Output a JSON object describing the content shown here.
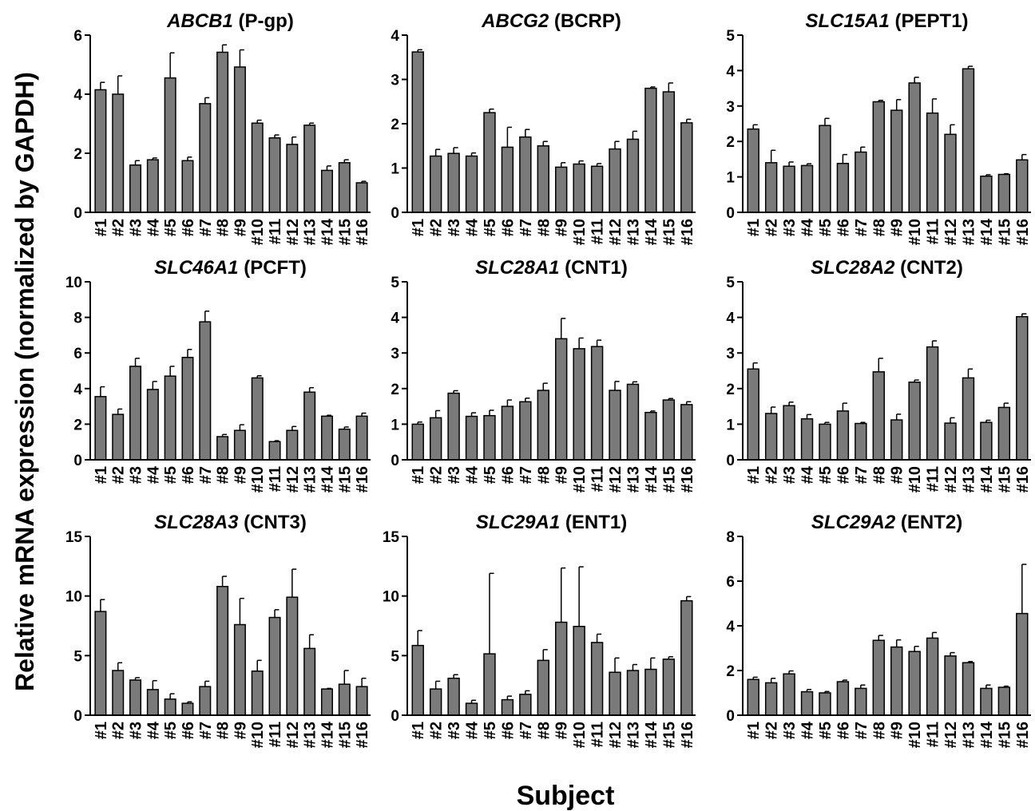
{
  "figure": {
    "ylabel": "Relative mRNA expression (normalized by GAPDH)",
    "xlabel": "Subject"
  },
  "colors": {
    "bar": "#7a7a7a",
    "stroke": "#000000"
  },
  "chart_data": [
    {
      "type": "bar",
      "title_gene": "ABCB1",
      "title_protein": " (P-gp)",
      "categories": [
        "#1",
        "#2",
        "#3",
        "#4",
        "#5",
        "#6",
        "#7",
        "#8",
        "#9",
        "#10",
        "#11",
        "#12",
        "#13",
        "#14",
        "#15",
        "#16"
      ],
      "ylim": [
        0,
        6
      ],
      "yticks": [
        0,
        2,
        4,
        6
      ],
      "values": [
        4.15,
        4.0,
        1.6,
        1.78,
        4.55,
        1.75,
        3.68,
        5.42,
        4.92,
        3.02,
        2.52,
        2.3,
        2.95,
        1.42,
        1.68,
        1.0
      ],
      "errors": [
        0.25,
        0.62,
        0.15,
        0.06,
        0.85,
        0.12,
        0.2,
        0.25,
        0.58,
        0.1,
        0.1,
        0.25,
        0.07,
        0.15,
        0.1,
        0.05
      ]
    },
    {
      "type": "bar",
      "title_gene": "ABCG2",
      "title_protein": " (BCRP)",
      "categories": [
        "#1",
        "#2",
        "#3",
        "#4",
        "#5",
        "#6",
        "#7",
        "#8",
        "#9",
        "#10",
        "#11",
        "#12",
        "#13",
        "#14",
        "#15",
        "#16"
      ],
      "ylim": [
        0,
        4
      ],
      "yticks": [
        0,
        1,
        2,
        3,
        4
      ],
      "values": [
        3.62,
        1.27,
        1.33,
        1.27,
        2.25,
        1.47,
        1.7,
        1.5,
        1.02,
        1.09,
        1.04,
        1.43,
        1.65,
        2.8,
        2.72,
        2.02
      ],
      "errors": [
        0.05,
        0.15,
        0.13,
        0.07,
        0.08,
        0.45,
        0.17,
        0.1,
        0.1,
        0.07,
        0.06,
        0.17,
        0.18,
        0.03,
        0.2,
        0.08
      ]
    },
    {
      "type": "bar",
      "title_gene": "SLC15A1",
      "title_protein": " (PEPT1)",
      "categories": [
        "#1",
        "#2",
        "#3",
        "#4",
        "#5",
        "#6",
        "#7",
        "#8",
        "#9",
        "#10",
        "#11",
        "#12",
        "#13",
        "#14",
        "#15",
        "#16"
      ],
      "ylim": [
        0,
        5
      ],
      "yticks": [
        0,
        1,
        2,
        3,
        4,
        5
      ],
      "values": [
        2.35,
        1.4,
        1.3,
        1.32,
        2.45,
        1.38,
        1.7,
        3.12,
        2.88,
        3.65,
        2.8,
        2.2,
        4.05,
        1.02,
        1.07,
        1.48
      ],
      "errors": [
        0.12,
        0.35,
        0.12,
        0.05,
        0.2,
        0.25,
        0.14,
        0.04,
        0.3,
        0.16,
        0.4,
        0.27,
        0.07,
        0.04,
        0.02,
        0.15
      ]
    },
    {
      "type": "bar",
      "title_gene": "SLC46A1",
      "title_protein": " (PCFT)",
      "categories": [
        "#1",
        "#2",
        "#3",
        "#4",
        "#5",
        "#6",
        "#7",
        "#8",
        "#9",
        "#10",
        "#11",
        "#12",
        "#13",
        "#14",
        "#15",
        "#16"
      ],
      "ylim": [
        0,
        10
      ],
      "yticks": [
        0,
        2,
        4,
        6,
        8,
        10
      ],
      "values": [
        3.55,
        2.55,
        5.25,
        3.95,
        4.7,
        5.75,
        7.75,
        1.3,
        1.65,
        4.6,
        1.02,
        1.65,
        3.8,
        2.45,
        1.72,
        2.45
      ],
      "errors": [
        0.55,
        0.3,
        0.45,
        0.45,
        0.55,
        0.45,
        0.6,
        0.12,
        0.32,
        0.12,
        0.05,
        0.22,
        0.25,
        0.05,
        0.12,
        0.17
      ]
    },
    {
      "type": "bar",
      "title_gene": "SLC28A1",
      "title_protein": " (CNT1)",
      "categories": [
        "#1",
        "#2",
        "#3",
        "#4",
        "#5",
        "#6",
        "#7",
        "#8",
        "#9",
        "#10",
        "#11",
        "#12",
        "#13",
        "#14",
        "#15",
        "#16"
      ],
      "ylim": [
        0,
        5
      ],
      "yticks": [
        0,
        1,
        2,
        3,
        4,
        5
      ],
      "values": [
        1.0,
        1.18,
        1.87,
        1.22,
        1.24,
        1.5,
        1.63,
        1.95,
        3.4,
        3.12,
        3.18,
        1.95,
        2.12,
        1.33,
        1.68,
        1.55
      ],
      "errors": [
        0.06,
        0.2,
        0.07,
        0.1,
        0.15,
        0.18,
        0.1,
        0.2,
        0.57,
        0.3,
        0.18,
        0.25,
        0.07,
        0.04,
        0.04,
        0.08
      ]
    },
    {
      "type": "bar",
      "title_gene": "SLC28A2",
      "title_protein": " (CNT2)",
      "categories": [
        "#1",
        "#2",
        "#3",
        "#4",
        "#5",
        "#6",
        "#7",
        "#8",
        "#9",
        "#10",
        "#11",
        "#12",
        "#13",
        "#14",
        "#15",
        "#16"
      ],
      "ylim": [
        0,
        5
      ],
      "yticks": [
        0,
        1,
        2,
        3,
        4,
        5
      ],
      "values": [
        2.55,
        1.3,
        1.52,
        1.15,
        1.0,
        1.37,
        1.02,
        2.47,
        1.12,
        2.18,
        3.17,
        1.03,
        2.3,
        1.05,
        1.47,
        4.02
      ],
      "errors": [
        0.17,
        0.18,
        0.1,
        0.12,
        0.05,
        0.22,
        0.03,
        0.38,
        0.16,
        0.06,
        0.17,
        0.15,
        0.25,
        0.06,
        0.12,
        0.08
      ]
    },
    {
      "type": "bar",
      "title_gene": "SLC28A3",
      "title_protein": " (CNT3)",
      "categories": [
        "#1",
        "#2",
        "#3",
        "#4",
        "#5",
        "#6",
        "#7",
        "#8",
        "#9",
        "#10",
        "#11",
        "#12",
        "#13",
        "#14",
        "#15",
        "#16"
      ],
      "ylim": [
        0,
        15
      ],
      "yticks": [
        0,
        5,
        10,
        15
      ],
      "values": [
        8.7,
        3.75,
        2.95,
        2.15,
        1.35,
        1.0,
        2.4,
        10.8,
        7.6,
        3.7,
        8.2,
        9.9,
        5.6,
        2.2,
        2.6,
        2.4
      ],
      "errors": [
        1.0,
        0.65,
        0.2,
        0.75,
        0.45,
        0.12,
        0.45,
        0.85,
        2.2,
        0.9,
        0.65,
        2.35,
        1.15,
        0.05,
        1.15,
        0.7
      ]
    },
    {
      "type": "bar",
      "title_gene": "SLC29A1",
      "title_protein": " (ENT1)",
      "categories": [
        "#1",
        "#2",
        "#3",
        "#4",
        "#5",
        "#6",
        "#7",
        "#8",
        "#9",
        "#10",
        "#11",
        "#12",
        "#13",
        "#14",
        "#15",
        "#16"
      ],
      "ylim": [
        0,
        15
      ],
      "yticks": [
        0,
        5,
        10,
        15
      ],
      "values": [
        5.85,
        2.2,
        3.1,
        1.0,
        5.15,
        1.3,
        1.75,
        4.6,
        7.8,
        7.45,
        6.1,
        3.6,
        3.75,
        3.85,
        4.7,
        9.6
      ],
      "errors": [
        1.25,
        0.65,
        0.3,
        0.25,
        6.75,
        0.3,
        0.3,
        0.9,
        4.55,
        5.0,
        0.7,
        1.2,
        0.5,
        0.95,
        0.2,
        0.35
      ]
    },
    {
      "type": "bar",
      "title_gene": "SLC29A2",
      "title_protein": " (ENT2)",
      "categories": [
        "#1",
        "#2",
        "#3",
        "#4",
        "#5",
        "#6",
        "#7",
        "#8",
        "#9",
        "#10",
        "#11",
        "#12",
        "#13",
        "#14",
        "#15",
        "#16"
      ],
      "ylim": [
        0,
        8
      ],
      "yticks": [
        0,
        2,
        4,
        6,
        8
      ],
      "values": [
        1.6,
        1.45,
        1.85,
        1.05,
        1.0,
        1.5,
        1.2,
        3.35,
        3.05,
        2.85,
        3.45,
        2.65,
        2.35,
        1.2,
        1.25,
        4.55
      ],
      "errors": [
        0.1,
        0.2,
        0.13,
        0.1,
        0.06,
        0.07,
        0.15,
        0.22,
        0.32,
        0.23,
        0.25,
        0.15,
        0.05,
        0.15,
        0.05,
        2.2
      ]
    }
  ]
}
